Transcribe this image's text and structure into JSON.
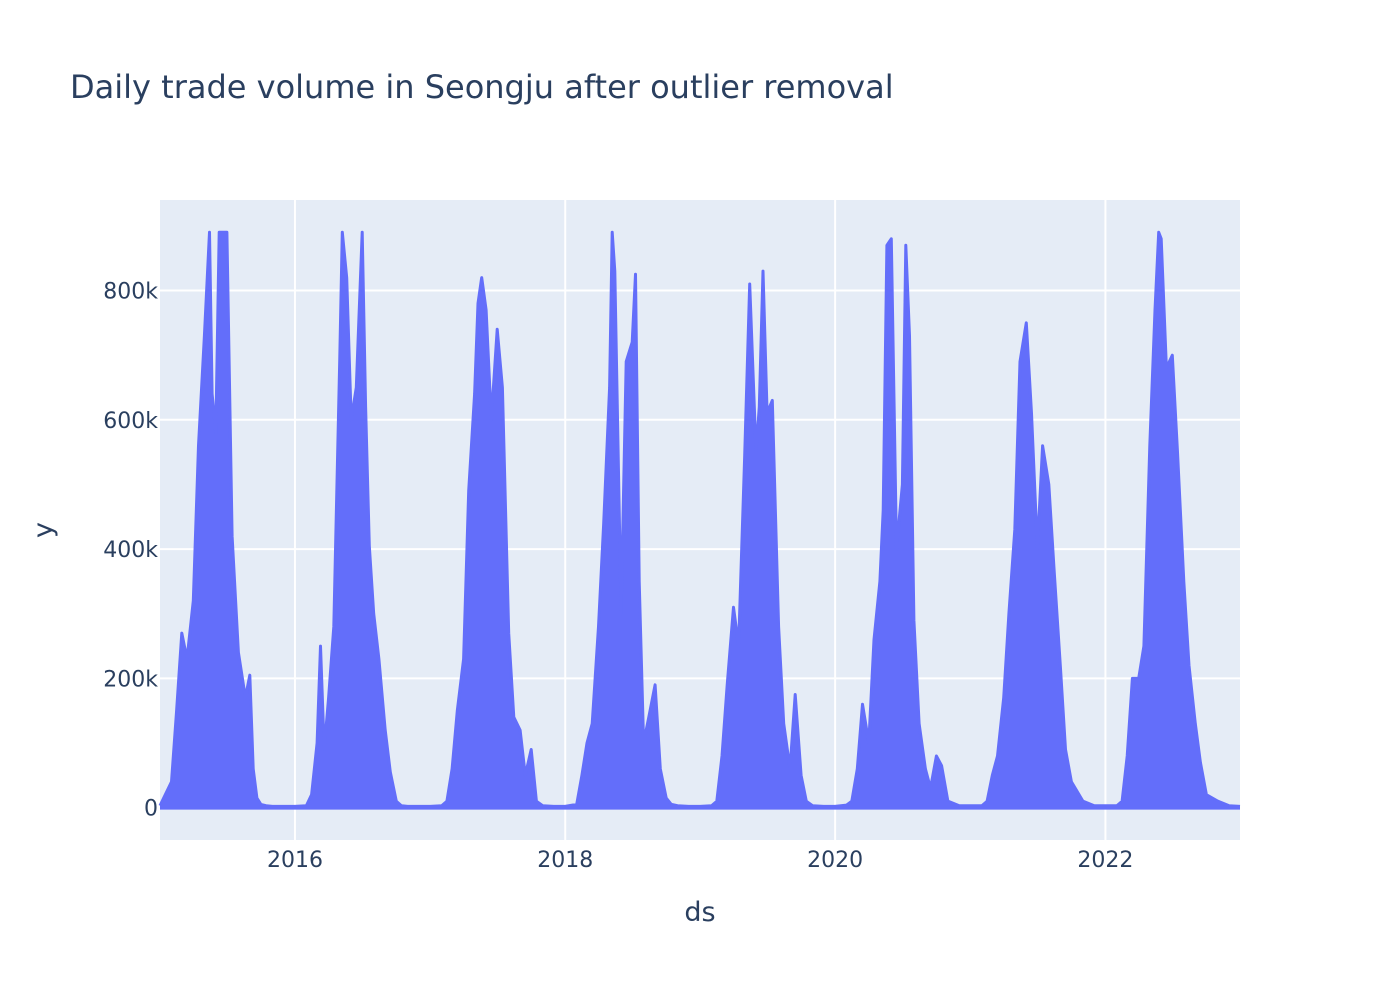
{
  "chart_data": {
    "type": "line",
    "title": "Daily trade volume in Seongju after outlier removal",
    "xlabel": "ds",
    "ylabel": "y",
    "xlim": [
      "2015-01-01",
      "2022-12-31"
    ],
    "ylim": [
      -50000,
      940000
    ],
    "x_ticks": [
      {
        "date": "2016-01-01",
        "label": "2016"
      },
      {
        "date": "2018-01-01",
        "label": "2018"
      },
      {
        "date": "2020-01-01",
        "label": "2020"
      },
      {
        "date": "2022-01-01",
        "label": "2022"
      }
    ],
    "y_ticks": [
      {
        "value": 0,
        "label": "0"
      },
      {
        "value": 200000,
        "label": "200k"
      },
      {
        "value": 400000,
        "label": "400k"
      },
      {
        "value": 600000,
        "label": "600k"
      },
      {
        "value": 800000,
        "label": "800k"
      }
    ],
    "grid": true,
    "legend": "none",
    "colors": {
      "series": "#636efa",
      "plot_bg": "#e5ecf6",
      "grid": "#ffffff",
      "text": "#2a3f5f"
    },
    "series": [
      {
        "x": [
          "2015-01-01",
          "2015-02-01",
          "2015-02-15",
          "2015-03-01",
          "2015-03-15",
          "2015-04-01",
          "2015-04-15",
          "2015-05-01",
          "2015-05-15",
          "2015-05-22",
          "2015-06-01",
          "2015-06-10",
          "2015-06-20",
          "2015-07-01",
          "2015-07-15",
          "2015-08-01",
          "2015-08-20",
          "2015-09-01",
          "2015-09-10",
          "2015-09-20",
          "2015-10-01",
          "2015-10-15",
          "2015-11-01",
          "2015-12-01",
          "2016-01-01",
          "2016-02-01",
          "2016-02-15",
          "2016-03-01",
          "2016-03-10",
          "2016-03-20",
          "2016-04-01",
          "2016-04-15",
          "2016-05-01",
          "2016-05-08",
          "2016-05-20",
          "2016-06-01",
          "2016-06-15",
          "2016-07-01",
          "2016-07-10",
          "2016-07-20",
          "2016-08-01",
          "2016-08-15",
          "2016-09-01",
          "2016-09-15",
          "2016-10-01",
          "2016-10-15",
          "2016-11-01",
          "2016-12-01",
          "2017-01-01",
          "2017-02-01",
          "2017-02-15",
          "2017-03-01",
          "2017-03-15",
          "2017-04-01",
          "2017-04-15",
          "2017-05-01",
          "2017-05-10",
          "2017-05-20",
          "2017-06-01",
          "2017-06-15",
          "2017-07-01",
          "2017-07-15",
          "2017-08-01",
          "2017-08-15",
          "2017-09-01",
          "2017-09-15",
          "2017-10-01",
          "2017-10-15",
          "2017-11-01",
          "2017-12-01",
          "2018-01-01",
          "2018-02-01",
          "2018-02-15",
          "2018-03-01",
          "2018-03-15",
          "2018-04-01",
          "2018-04-15",
          "2018-05-01",
          "2018-05-08",
          "2018-05-15",
          "2018-06-01",
          "2018-06-15",
          "2018-07-01",
          "2018-07-10",
          "2018-07-20",
          "2018-08-01",
          "2018-08-15",
          "2018-09-01",
          "2018-09-15",
          "2018-10-01",
          "2018-10-15",
          "2018-11-01",
          "2018-12-01",
          "2019-01-01",
          "2019-02-01",
          "2019-02-15",
          "2019-03-01",
          "2019-03-15",
          "2019-04-01",
          "2019-04-15",
          "2019-05-01",
          "2019-05-15",
          "2019-06-01",
          "2019-06-10",
          "2019-06-20",
          "2019-07-01",
          "2019-07-15",
          "2019-08-01",
          "2019-08-15",
          "2019-09-01",
          "2019-09-15",
          "2019-10-01",
          "2019-10-15",
          "2019-11-01",
          "2019-12-01",
          "2020-01-01",
          "2020-02-01",
          "2020-02-15",
          "2020-03-01",
          "2020-03-15",
          "2020-04-01",
          "2020-04-15",
          "2020-05-01",
          "2020-05-10",
          "2020-05-20",
          "2020-06-01",
          "2020-06-15",
          "2020-07-01",
          "2020-07-10",
          "2020-07-20",
          "2020-08-01",
          "2020-08-15",
          "2020-09-01",
          "2020-09-15",
          "2020-10-01",
          "2020-10-15",
          "2020-11-01",
          "2020-12-01",
          "2021-01-01",
          "2021-02-01",
          "2021-02-15",
          "2021-03-01",
          "2021-03-15",
          "2021-04-01",
          "2021-04-15",
          "2021-05-01",
          "2021-05-15",
          "2021-06-01",
          "2021-06-15",
          "2021-07-01",
          "2021-07-15",
          "2021-08-01",
          "2021-08-15",
          "2021-09-01",
          "2021-09-15",
          "2021-10-01",
          "2021-11-01",
          "2021-12-01",
          "2022-01-01",
          "2022-02-01",
          "2022-02-15",
          "2022-03-01",
          "2022-03-15",
          "2022-04-01",
          "2022-04-15",
          "2022-05-01",
          "2022-05-15",
          "2022-05-25",
          "2022-06-01",
          "2022-06-15",
          "2022-07-01",
          "2022-07-15",
          "2022-08-01",
          "2022-08-15",
          "2022-09-01",
          "2022-09-15",
          "2022-10-01",
          "2022-11-01",
          "2022-12-01",
          "2022-12-31"
        ],
        "y": [
          3000,
          40000,
          150000,
          270000,
          230000,
          320000,
          560000,
          730000,
          890000,
          640000,
          580000,
          890000,
          890000,
          890000,
          420000,
          240000,
          170000,
          205000,
          60000,
          15000,
          5000,
          3000,
          2000,
          2000,
          2000,
          3000,
          20000,
          100000,
          250000,
          90000,
          170000,
          280000,
          690000,
          890000,
          820000,
          600000,
          650000,
          890000,
          620000,
          405000,
          300000,
          230000,
          120000,
          55000,
          10000,
          3000,
          2000,
          2000,
          2000,
          3000,
          10000,
          60000,
          150000,
          230000,
          490000,
          640000,
          780000,
          820000,
          770000,
          600000,
          740000,
          650000,
          270000,
          140000,
          120000,
          50000,
          90000,
          10000,
          3000,
          2000,
          2000,
          5000,
          50000,
          100000,
          130000,
          280000,
          440000,
          650000,
          890000,
          830000,
          300000,
          690000,
          720000,
          825000,
          350000,
          100000,
          140000,
          190000,
          60000,
          15000,
          5000,
          3000,
          2000,
          2000,
          3000,
          10000,
          80000,
          190000,
          310000,
          250000,
          540000,
          810000,
          550000,
          620000,
          830000,
          610000,
          630000,
          280000,
          130000,
          60000,
          175000,
          50000,
          10000,
          3000,
          2000,
          2000,
          4000,
          10000,
          60000,
          160000,
          100000,
          260000,
          350000,
          460000,
          870000,
          880000,
          400000,
          500000,
          870000,
          730000,
          290000,
          130000,
          60000,
          30000,
          80000,
          65000,
          10000,
          3000,
          3000,
          3000,
          10000,
          50000,
          80000,
          170000,
          300000,
          430000,
          690000,
          750000,
          610000,
          400000,
          560000,
          500000,
          370000,
          220000,
          90000,
          40000,
          10000,
          3000,
          3000,
          3000,
          10000,
          80000,
          200000,
          200000,
          250000,
          560000,
          770000,
          890000,
          880000,
          680000,
          700000,
          550000,
          350000,
          220000,
          130000,
          70000,
          20000,
          10000,
          3000,
          2000
        ]
      }
    ]
  }
}
